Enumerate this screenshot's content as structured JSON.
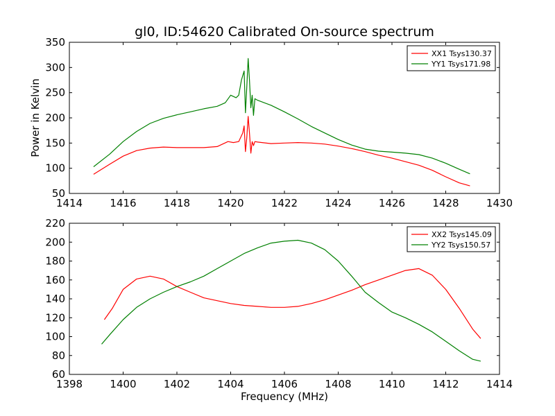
{
  "chart_data": [
    {
      "type": "line",
      "title": "gl0, ID:54620 Calibrated On-source spectrum",
      "xlabel": "",
      "ylabel": "Power in Kelvin",
      "xlim": [
        1414,
        1430
      ],
      "ylim": [
        50,
        350
      ],
      "xticks": [
        1414,
        1416,
        1418,
        1420,
        1422,
        1424,
        1426,
        1428,
        1430
      ],
      "yticks": [
        50,
        100,
        150,
        200,
        250,
        300,
        350
      ],
      "legend_position": "top-right",
      "series": [
        {
          "name": "XX1 Tsys130.37",
          "color": "#ff0000",
          "x": [
            1414.9,
            1415.5,
            1416.0,
            1416.5,
            1417.0,
            1417.5,
            1418.0,
            1418.5,
            1419.0,
            1419.5,
            1419.9,
            1420.1,
            1420.3,
            1420.45,
            1420.5,
            1420.55,
            1420.6,
            1420.65,
            1420.7,
            1420.75,
            1420.8,
            1420.85,
            1420.9,
            1421.0,
            1421.5,
            1422.0,
            1422.5,
            1423.0,
            1423.5,
            1424.0,
            1424.5,
            1425.0,
            1425.5,
            1426.0,
            1426.5,
            1427.0,
            1427.5,
            1428.0,
            1428.5,
            1428.9
          ],
          "values": [
            88,
            108,
            124,
            135,
            140,
            142,
            141,
            141,
            141,
            143,
            153,
            151,
            153,
            170,
            184,
            133,
            160,
            203,
            170,
            130,
            153,
            145,
            153,
            152,
            149,
            150,
            151,
            150,
            148,
            144,
            139,
            133,
            126,
            120,
            113,
            106,
            96,
            83,
            71,
            65
          ]
        },
        {
          "name": "YY1 Tsys171.98",
          "color": "#008000",
          "x": [
            1414.9,
            1415.5,
            1416.0,
            1416.5,
            1417.0,
            1417.5,
            1418.0,
            1418.5,
            1419.0,
            1419.5,
            1419.8,
            1420.0,
            1420.2,
            1420.3,
            1420.4,
            1420.5,
            1420.55,
            1420.6,
            1420.65,
            1420.7,
            1420.75,
            1420.8,
            1420.85,
            1420.9,
            1421.0,
            1421.5,
            1422.0,
            1422.5,
            1423.0,
            1423.5,
            1424.0,
            1424.5,
            1425.0,
            1425.5,
            1426.0,
            1426.5,
            1427.0,
            1427.5,
            1428.0,
            1428.5,
            1428.9
          ],
          "values": [
            103,
            128,
            153,
            173,
            189,
            199,
            206,
            212,
            218,
            223,
            230,
            245,
            240,
            245,
            275,
            293,
            210,
            260,
            318,
            275,
            220,
            245,
            205,
            238,
            235,
            225,
            212,
            198,
            183,
            170,
            157,
            146,
            138,
            134,
            132,
            130,
            127,
            120,
            110,
            98,
            89
          ]
        }
      ]
    },
    {
      "type": "line",
      "title": "",
      "xlabel": "Frequency (MHz)",
      "ylabel": "",
      "xlim": [
        1398,
        1414
      ],
      "ylim": [
        60,
        220
      ],
      "xticks": [
        1398,
        1400,
        1402,
        1404,
        1406,
        1408,
        1410,
        1412,
        1414
      ],
      "yticks": [
        60,
        80,
        100,
        120,
        140,
        160,
        180,
        200,
        220
      ],
      "legend_position": "top-right",
      "series": [
        {
          "name": "XX2 Tsys145.09",
          "color": "#ff0000",
          "x": [
            1399.3,
            1399.6,
            1400.0,
            1400.5,
            1401.0,
            1401.5,
            1402.0,
            1402.5,
            1403.0,
            1403.5,
            1404.0,
            1404.5,
            1405.0,
            1405.5,
            1406.0,
            1406.5,
            1407.0,
            1407.5,
            1408.0,
            1408.5,
            1409.0,
            1409.5,
            1410.0,
            1410.5,
            1411.0,
            1411.5,
            1412.0,
            1412.5,
            1413.0,
            1413.3
          ],
          "values": [
            118,
            130,
            150,
            161,
            164,
            161,
            153,
            147,
            141,
            138,
            135,
            133,
            132,
            131,
            131,
            132,
            135,
            139,
            144,
            149,
            155,
            160,
            165,
            170,
            172,
            165,
            150,
            130,
            108,
            98
          ]
        },
        {
          "name": "YY2 Tsys150.57",
          "color": "#008000",
          "x": [
            1399.2,
            1399.5,
            1400.0,
            1400.5,
            1401.0,
            1401.5,
            1402.0,
            1402.5,
            1403.0,
            1403.5,
            1404.0,
            1404.5,
            1405.0,
            1405.5,
            1406.0,
            1406.5,
            1407.0,
            1407.5,
            1408.0,
            1408.5,
            1409.0,
            1409.5,
            1410.0,
            1410.5,
            1411.0,
            1411.5,
            1412.0,
            1412.5,
            1413.0,
            1413.3
          ],
          "values": [
            92,
            102,
            118,
            131,
            140,
            147,
            153,
            158,
            164,
            172,
            180,
            188,
            194,
            199,
            201,
            202,
            199,
            192,
            180,
            164,
            147,
            136,
            126,
            120,
            113,
            105,
            95,
            85,
            76,
            74
          ]
        }
      ]
    }
  ]
}
